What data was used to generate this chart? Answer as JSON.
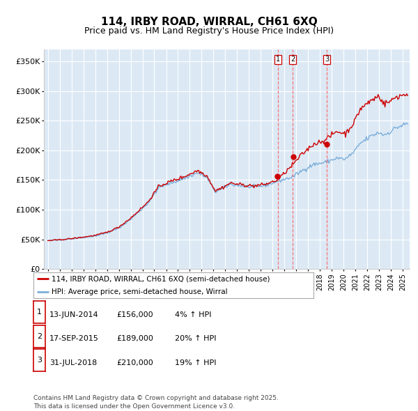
{
  "title": "114, IRBY ROAD, WIRRAL, CH61 6XQ",
  "subtitle": "Price paid vs. HM Land Registry's House Price Index (HPI)",
  "legend_line1": "114, IRBY ROAD, WIRRAL, CH61 6XQ (semi-detached house)",
  "legend_line2": "HPI: Average price, semi-detached house, Wirral",
  "footer": "Contains HM Land Registry data © Crown copyright and database right 2025.\nThis data is licensed under the Open Government Licence v3.0.",
  "ylim": [
    0,
    370000
  ],
  "yticks": [
    0,
    50000,
    100000,
    150000,
    200000,
    250000,
    300000,
    350000
  ],
  "ytick_labels": [
    "£0",
    "£50K",
    "£100K",
    "£150K",
    "£200K",
    "£250K",
    "£300K",
    "£350K"
  ],
  "sale_dates": [
    "2014-06-13",
    "2015-09-17",
    "2018-07-31"
  ],
  "sale_prices": [
    156000,
    189000,
    210000
  ],
  "sale_labels": [
    "1",
    "2",
    "3"
  ],
  "sale_info": [
    [
      "1",
      "13-JUN-2014",
      "£156,000",
      "4% ↑ HPI"
    ],
    [
      "2",
      "17-SEP-2015",
      "£189,000",
      "20% ↑ HPI"
    ],
    [
      "3",
      "31-JUL-2018",
      "£210,000",
      "19% ↑ HPI"
    ]
  ],
  "hpi_color": "#7aadda",
  "price_color": "#cc0000",
  "plot_bg_color": "#dce9f5",
  "grid_color": "#ffffff",
  "vline_color": "#ff6666",
  "title_fontsize": 11,
  "subtitle_fontsize": 9,
  "hpi_keypoints": [
    [
      1995,
      1,
      48000
    ],
    [
      1996,
      1,
      49500
    ],
    [
      1997,
      1,
      51000
    ],
    [
      1998,
      1,
      53500
    ],
    [
      1999,
      1,
      56000
    ],
    [
      2000,
      1,
      61000
    ],
    [
      2001,
      1,
      69000
    ],
    [
      2002,
      1,
      84000
    ],
    [
      2003,
      6,
      110000
    ],
    [
      2004,
      6,
      138000
    ],
    [
      2005,
      6,
      145000
    ],
    [
      2006,
      6,
      152000
    ],
    [
      2007,
      9,
      162000
    ],
    [
      2008,
      6,
      155000
    ],
    [
      2009,
      3,
      130000
    ],
    [
      2009,
      12,
      137000
    ],
    [
      2010,
      6,
      143000
    ],
    [
      2011,
      6,
      140000
    ],
    [
      2012,
      6,
      138000
    ],
    [
      2013,
      6,
      141000
    ],
    [
      2014,
      6,
      148000
    ],
    [
      2015,
      9,
      155000
    ],
    [
      2016,
      6,
      165000
    ],
    [
      2017,
      6,
      176000
    ],
    [
      2018,
      7,
      180000
    ],
    [
      2019,
      6,
      187000
    ],
    [
      2020,
      3,
      185000
    ],
    [
      2020,
      12,
      198000
    ],
    [
      2021,
      6,
      212000
    ],
    [
      2022,
      6,
      225000
    ],
    [
      2023,
      1,
      230000
    ],
    [
      2023,
      6,
      226000
    ],
    [
      2024,
      1,
      232000
    ],
    [
      2024,
      6,
      238000
    ],
    [
      2025,
      6,
      245000
    ]
  ],
  "price_keypoints": [
    [
      1995,
      1,
      48000
    ],
    [
      1996,
      1,
      49500
    ],
    [
      1997,
      1,
      51500
    ],
    [
      1998,
      1,
      54000
    ],
    [
      1999,
      1,
      57000
    ],
    [
      2000,
      1,
      62000
    ],
    [
      2001,
      1,
      71000
    ],
    [
      2002,
      1,
      86000
    ],
    [
      2003,
      6,
      112000
    ],
    [
      2004,
      6,
      140000
    ],
    [
      2005,
      6,
      148000
    ],
    [
      2006,
      6,
      155000
    ],
    [
      2007,
      9,
      166000
    ],
    [
      2008,
      6,
      158000
    ],
    [
      2009,
      3,
      132000
    ],
    [
      2009,
      12,
      139000
    ],
    [
      2010,
      6,
      145000
    ],
    [
      2011,
      6,
      142000
    ],
    [
      2012,
      6,
      140000
    ],
    [
      2013,
      6,
      143000
    ],
    [
      2014,
      6,
      150000
    ],
    [
      2015,
      9,
      175000
    ],
    [
      2016,
      6,
      192000
    ],
    [
      2017,
      6,
      210000
    ],
    [
      2018,
      7,
      218000
    ],
    [
      2019,
      6,
      232000
    ],
    [
      2020,
      3,
      228000
    ],
    [
      2020,
      12,
      248000
    ],
    [
      2021,
      6,
      270000
    ],
    [
      2022,
      6,
      285000
    ],
    [
      2023,
      1,
      292000
    ],
    [
      2023,
      6,
      278000
    ],
    [
      2024,
      1,
      283000
    ],
    [
      2024,
      6,
      290000
    ],
    [
      2025,
      6,
      295000
    ]
  ]
}
